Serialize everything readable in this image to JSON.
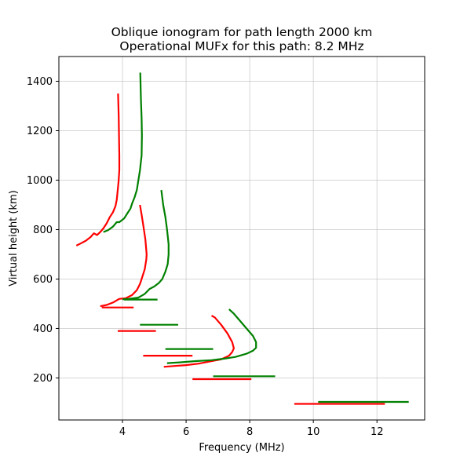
{
  "chart_data": {
    "type": "line",
    "title": "Oblique ionogram for path length 2000 km",
    "subtitle": "Operational MUFx for this path: 8.2 MHz",
    "xlabel": "Frequency (MHz)",
    "ylabel": "Virtual height (km)",
    "xlim": [
      2.0,
      13.5
    ],
    "ylim": [
      30,
      1500
    ],
    "xticks": [
      4,
      6,
      8,
      10,
      12
    ],
    "yticks": [
      200,
      400,
      600,
      800,
      1000,
      1200,
      1400
    ],
    "grid": true,
    "colors": {
      "red": "#ff0000",
      "green": "#008000"
    },
    "series": [
      {
        "color": "red",
        "points": [
          [
            2.55,
            735
          ],
          [
            2.7,
            745
          ],
          [
            2.85,
            755
          ],
          [
            3.0,
            770
          ],
          [
            3.1,
            785
          ],
          [
            3.2,
            778
          ],
          [
            3.3,
            790
          ],
          [
            3.4,
            805
          ],
          [
            3.5,
            825
          ],
          [
            3.6,
            850
          ],
          [
            3.7,
            870
          ],
          [
            3.78,
            895
          ],
          [
            3.82,
            920
          ],
          [
            3.85,
            960
          ],
          [
            3.88,
            1000
          ],
          [
            3.9,
            1040
          ],
          [
            3.9,
            1100
          ],
          [
            3.89,
            1180
          ],
          [
            3.88,
            1260
          ],
          [
            3.86,
            1350
          ]
        ]
      },
      {
        "color": "green",
        "points": [
          [
            3.4,
            790
          ],
          [
            3.55,
            798
          ],
          [
            3.7,
            812
          ],
          [
            3.82,
            830
          ],
          [
            3.9,
            830
          ],
          [
            4.05,
            845
          ],
          [
            4.15,
            865
          ],
          [
            4.25,
            885
          ],
          [
            4.3,
            905
          ],
          [
            4.38,
            930
          ],
          [
            4.45,
            960
          ],
          [
            4.5,
            1000
          ],
          [
            4.55,
            1040
          ],
          [
            4.6,
            1100
          ],
          [
            4.61,
            1180
          ],
          [
            4.6,
            1250
          ],
          [
            4.58,
            1330
          ],
          [
            4.56,
            1435
          ]
        ]
      },
      {
        "color": "red",
        "points": [
          [
            3.3,
            490
          ],
          [
            3.5,
            495
          ],
          [
            3.7,
            505
          ],
          [
            3.9,
            520
          ],
          [
            4.1,
            522
          ],
          [
            4.3,
            535
          ],
          [
            4.45,
            555
          ],
          [
            4.55,
            580
          ],
          [
            4.6,
            600
          ],
          [
            4.7,
            640
          ],
          [
            4.75,
            680
          ],
          [
            4.76,
            700
          ],
          [
            4.72,
            760
          ],
          [
            4.65,
            820
          ],
          [
            4.6,
            860
          ],
          [
            4.55,
            900
          ]
        ]
      },
      {
        "color": "green",
        "points": [
          [
            4.0,
            518
          ],
          [
            4.2,
            520
          ],
          [
            4.5,
            525
          ],
          [
            4.7,
            540
          ],
          [
            4.85,
            560
          ],
          [
            5.0,
            570
          ],
          [
            5.15,
            585
          ],
          [
            5.25,
            600
          ],
          [
            5.35,
            630
          ],
          [
            5.42,
            660
          ],
          [
            5.45,
            700
          ],
          [
            5.45,
            740
          ],
          [
            5.4,
            800
          ],
          [
            5.35,
            850
          ],
          [
            5.28,
            900
          ],
          [
            5.22,
            960
          ]
        ]
      },
      {
        "color": "red",
        "points": [
          [
            5.3,
            245
          ],
          [
            5.6,
            248
          ],
          [
            6.0,
            252
          ],
          [
            6.4,
            258
          ],
          [
            6.8,
            268
          ],
          [
            7.1,
            275
          ],
          [
            7.35,
            290
          ],
          [
            7.45,
            305
          ],
          [
            7.5,
            320
          ],
          [
            7.45,
            345
          ],
          [
            7.3,
            380
          ],
          [
            7.1,
            415
          ],
          [
            6.9,
            445
          ],
          [
            6.8,
            452
          ]
        ]
      },
      {
        "color": "green",
        "points": [
          [
            5.4,
            260
          ],
          [
            5.8,
            263
          ],
          [
            6.3,
            268
          ],
          [
            6.8,
            272
          ],
          [
            7.2,
            278
          ],
          [
            7.55,
            285
          ],
          [
            7.9,
            298
          ],
          [
            8.1,
            310
          ],
          [
            8.2,
            322
          ],
          [
            8.2,
            345
          ],
          [
            8.1,
            370
          ],
          [
            7.9,
            400
          ],
          [
            7.7,
            430
          ],
          [
            7.5,
            460
          ],
          [
            7.35,
            478
          ]
        ]
      },
      {
        "color": "green",
        "points": [
          [
            4.05,
            517
          ],
          [
            5.1,
            517
          ]
        ]
      },
      {
        "color": "red",
        "points": [
          [
            3.35,
            485
          ],
          [
            4.35,
            485
          ]
        ]
      },
      {
        "color": "green",
        "points": [
          [
            4.55,
            415
          ],
          [
            5.75,
            415
          ]
        ]
      },
      {
        "color": "red",
        "points": [
          [
            3.85,
            390
          ],
          [
            5.05,
            390
          ]
        ]
      },
      {
        "color": "green",
        "points": [
          [
            5.35,
            317
          ],
          [
            6.85,
            317
          ]
        ]
      },
      {
        "color": "red",
        "points": [
          [
            4.65,
            290
          ],
          [
            6.2,
            290
          ]
        ]
      },
      {
        "color": "green",
        "points": [
          [
            6.85,
            207
          ],
          [
            8.8,
            207
          ]
        ]
      },
      {
        "color": "red",
        "points": [
          [
            6.2,
            195
          ],
          [
            8.05,
            195
          ]
        ]
      },
      {
        "color": "green",
        "points": [
          [
            10.15,
            103
          ],
          [
            13.0,
            103
          ]
        ]
      },
      {
        "color": "red",
        "points": [
          [
            9.4,
            95
          ],
          [
            12.25,
            95
          ]
        ]
      }
    ]
  }
}
